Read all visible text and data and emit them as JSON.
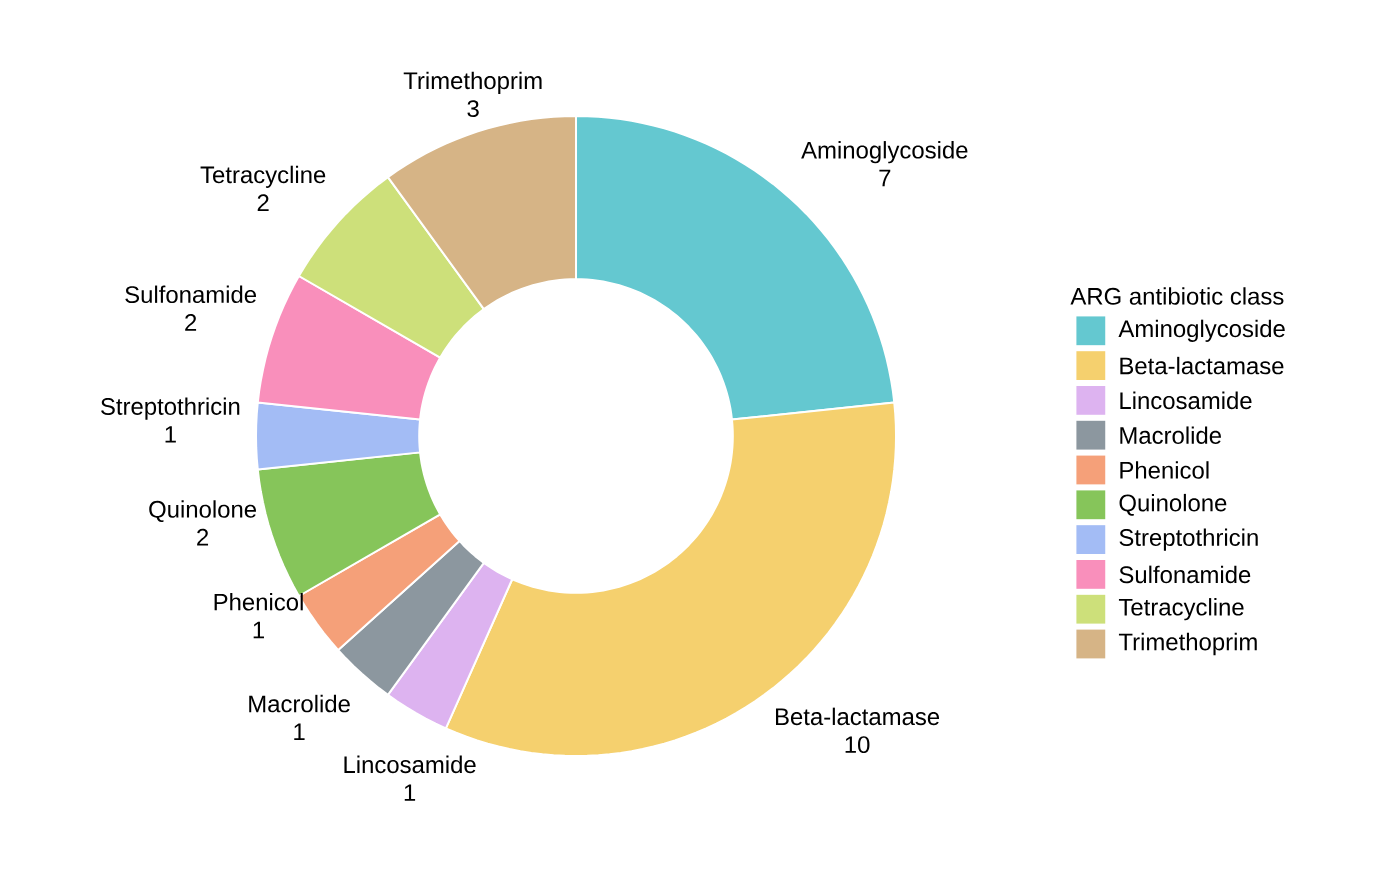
{
  "chart_data": {
    "type": "donut",
    "legend_title": "ARG antibiotic class",
    "categories": [
      "Aminoglycoside",
      "Beta-lactamase",
      "Lincosamide",
      "Macrolide",
      "Phenicol",
      "Quinolone",
      "Streptothricin",
      "Sulfonamide",
      "Tetracycline",
      "Trimethoprim"
    ],
    "values": [
      7,
      10,
      1,
      1,
      1,
      2,
      1,
      2,
      2,
      3
    ],
    "colors": [
      "#64c8d0",
      "#f5d06e",
      "#ddb3f0",
      "#8c979f",
      "#f5a079",
      "#86c55a",
      "#a3bcf5",
      "#f98fbb",
      "#cde07a",
      "#d6b486"
    ],
    "data_labels": true,
    "legend": "right"
  }
}
